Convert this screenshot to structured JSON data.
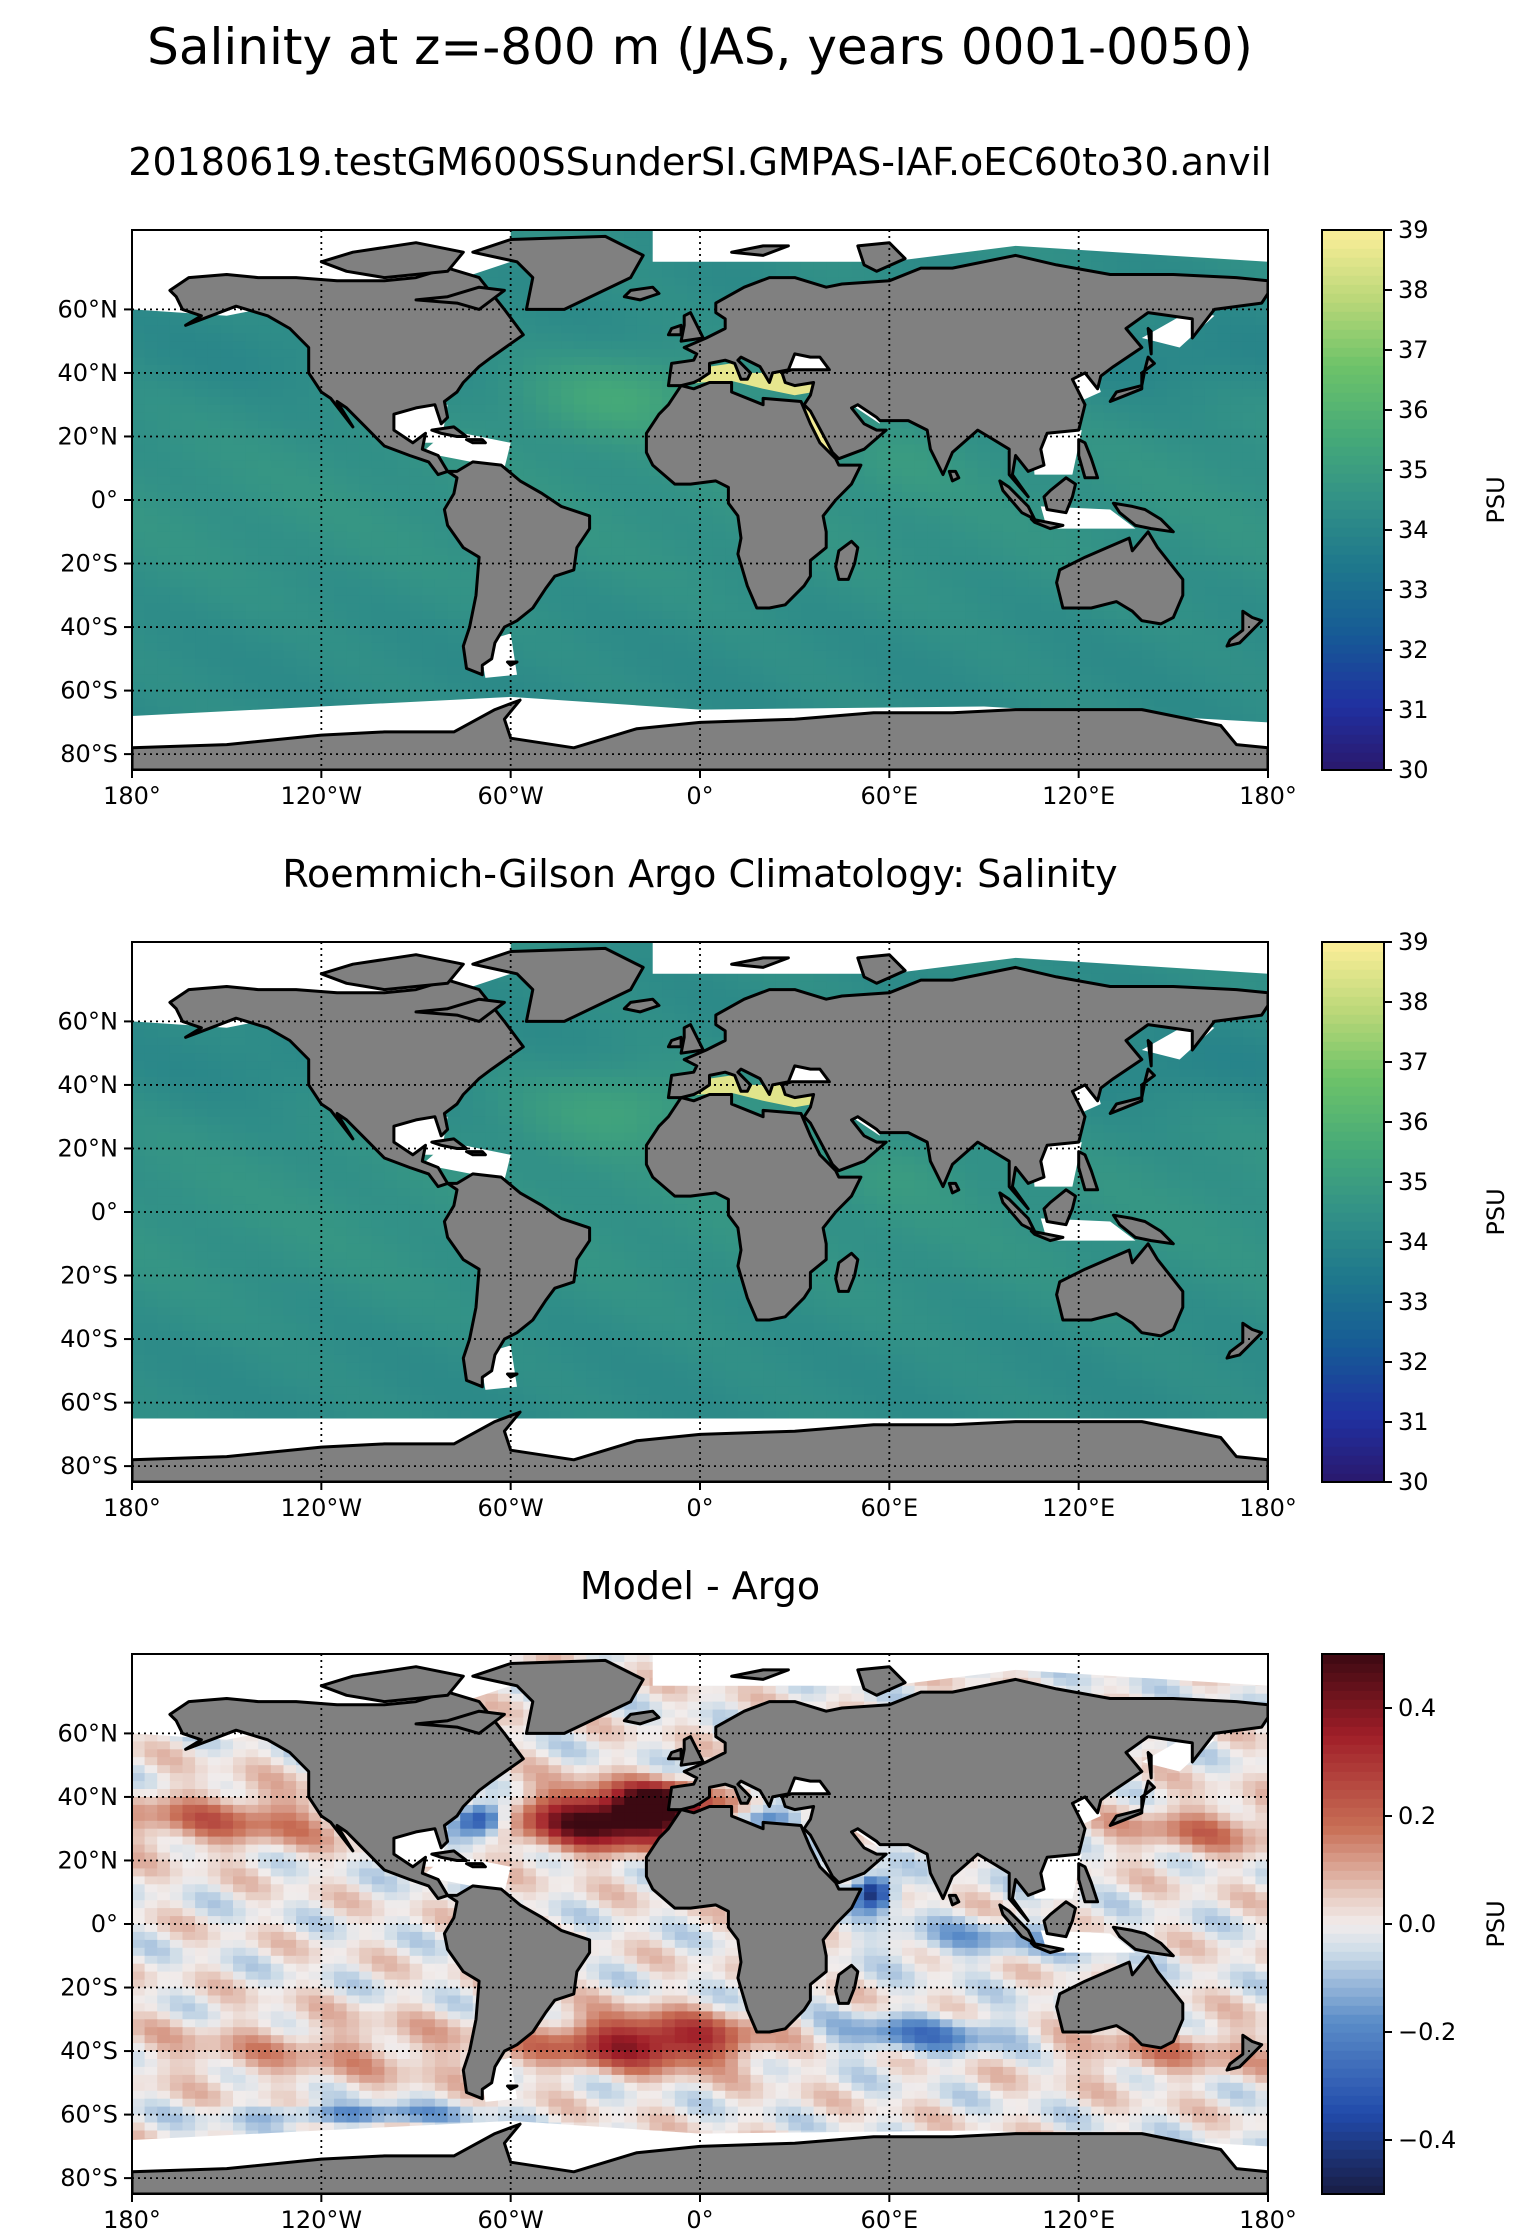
{
  "figure_title": "Salinity at z=-800 m (JAS, years 0001-0050)",
  "chart_data": [
    {
      "type": "heatmap",
      "title": "20180619.testGM600SSunderSI.GMPAS-IAF.oEC60to30.anvil",
      "xlim": [
        -180,
        180
      ],
      "ylim": [
        -85,
        85
      ],
      "x_ticks": [
        -180,
        -120,
        -60,
        0,
        60,
        120,
        180
      ],
      "x_tick_labels": [
        "180°",
        "120°W",
        "60°W",
        "0°",
        "60°E",
        "120°E",
        "180°"
      ],
      "y_ticks": [
        60,
        40,
        20,
        0,
        -20,
        -40,
        -60,
        -80
      ],
      "y_tick_labels": [
        "60°N",
        "40°N",
        "20°N",
        "0°",
        "20°S",
        "40°S",
        "60°S",
        "80°S"
      ],
      "grid": true,
      "colorbar": {
        "label": "PSU",
        "range": [
          30,
          39
        ],
        "ticks": [
          30,
          31,
          32,
          33,
          34,
          35,
          36,
          37,
          38,
          39
        ],
        "tick_labels": [
          "30",
          "31",
          "32",
          "33",
          "34",
          "35",
          "36",
          "37",
          "38",
          "39"
        ],
        "colormap": "haline"
      },
      "field_summary": {
        "open_ocean": 34.6,
        "north_atlantic_subtropics": 35.6,
        "mediterranean": 38.6,
        "red_sea": 38.8,
        "southern_ocean": 34.4
      },
      "colors": {
        "land": "#808080",
        "missing": "#ffffff",
        "coast": "#000000"
      }
    },
    {
      "type": "heatmap",
      "title": "Roemmich-Gilson Argo Climatology: Salinity",
      "xlim": [
        -180,
        180
      ],
      "ylim": [
        -85,
        85
      ],
      "x_ticks": [
        -180,
        -120,
        -60,
        0,
        60,
        120,
        180
      ],
      "x_tick_labels": [
        "180°",
        "120°W",
        "60°W",
        "0°",
        "60°E",
        "120°E",
        "180°"
      ],
      "y_ticks": [
        60,
        40,
        20,
        0,
        -20,
        -40,
        -60,
        -80
      ],
      "y_tick_labels": [
        "60°N",
        "40°N",
        "20°N",
        "0°",
        "20°S",
        "40°S",
        "60°S",
        "80°S"
      ],
      "grid": true,
      "colorbar": {
        "label": "PSU",
        "range": [
          30,
          39
        ],
        "ticks": [
          30,
          31,
          32,
          33,
          34,
          35,
          36,
          37,
          38,
          39
        ],
        "tick_labels": [
          "30",
          "31",
          "32",
          "33",
          "34",
          "35",
          "36",
          "37",
          "38",
          "39"
        ],
        "colormap": "haline"
      },
      "field_summary": {
        "open_ocean": 34.5,
        "north_atlantic_subtropics": 35.4,
        "mediterranean": 38.5,
        "southern_ocean": 34.4
      },
      "colors": {
        "land": "#808080",
        "missing": "#ffffff",
        "coast": "#000000"
      }
    },
    {
      "type": "heatmap",
      "title": "Model - Argo",
      "xlim": [
        -180,
        180
      ],
      "ylim": [
        -85,
        85
      ],
      "x_ticks": [
        -180,
        -120,
        -60,
        0,
        60,
        120,
        180
      ],
      "x_tick_labels": [
        "180°",
        "120°W",
        "60°W",
        "0°",
        "60°E",
        "120°E",
        "180°"
      ],
      "y_ticks": [
        60,
        40,
        20,
        0,
        -20,
        -40,
        -60,
        -80
      ],
      "y_tick_labels": [
        "60°N",
        "40°N",
        "20°N",
        "0°",
        "20°S",
        "40°S",
        "60°S",
        "80°S"
      ],
      "grid": true,
      "colorbar": {
        "label": "PSU",
        "range": [
          -0.5,
          0.5
        ],
        "ticks": [
          -0.4,
          -0.2,
          0.0,
          0.2,
          0.4
        ],
        "tick_labels": [
          "−0.4",
          "−0.2",
          "0.0",
          "0.2",
          "0.4"
        ],
        "colormap": "balance"
      },
      "field_summary": {
        "north_atlantic_subtropics": 0.5,
        "south_atlantic": 0.35,
        "gulf_stream": -0.3,
        "arabian_sea": -0.4,
        "southern_ocean": -0.15
      },
      "colors": {
        "land": "#808080",
        "missing": "#ffffff",
        "coast": "#000000"
      }
    }
  ]
}
